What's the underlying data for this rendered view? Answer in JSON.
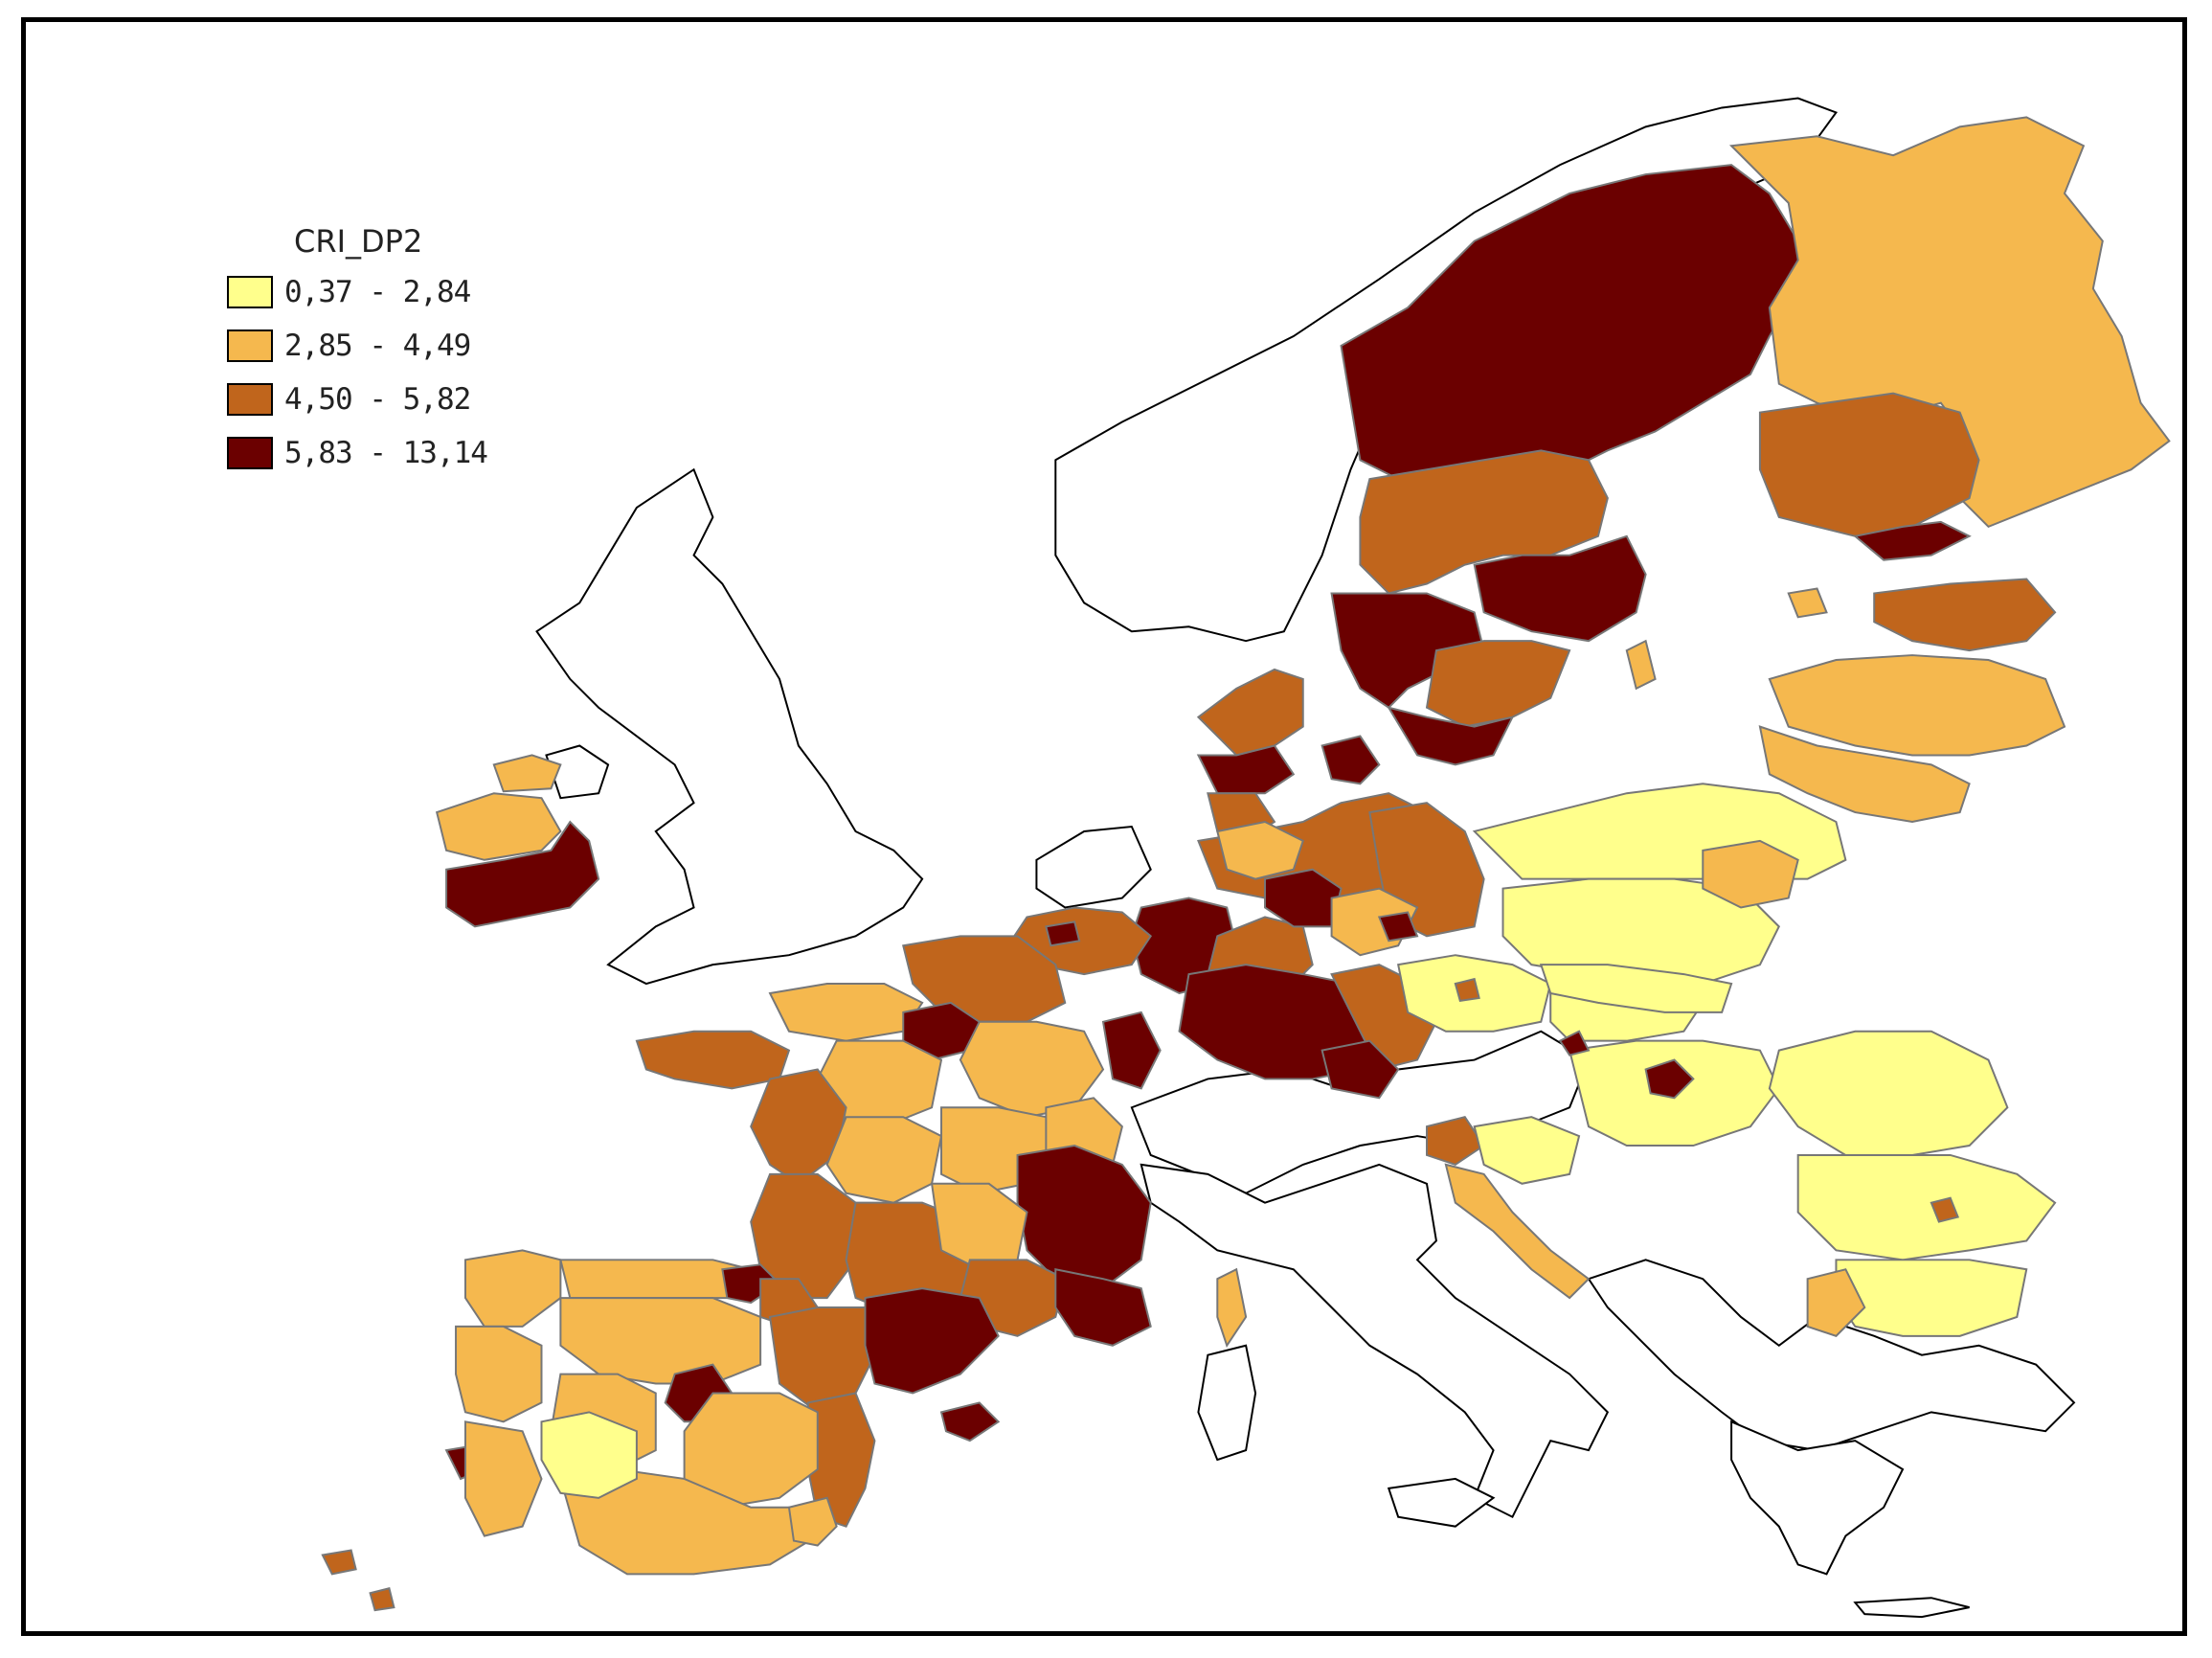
{
  "legend": {
    "title": "CRI_DP2",
    "classes": [
      {
        "label": "0,37 - 2,84",
        "color": "#ffff8c"
      },
      {
        "label": "2,85 - 4,49",
        "color": "#f5b84e"
      },
      {
        "label": "4,50 - 5,82",
        "color": "#c0651c"
      },
      {
        "label": "5,83 - 13,14",
        "color": "#6b0000"
      }
    ]
  },
  "colors": {
    "no_data_fill": "#ffffff",
    "region_border": "#777777",
    "coast_border": "#000000",
    "frame": "#000000"
  }
}
